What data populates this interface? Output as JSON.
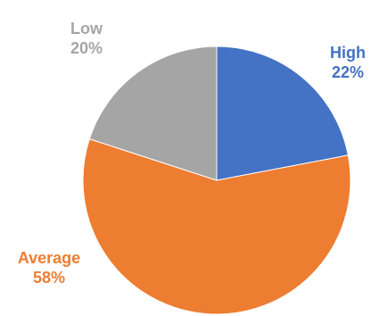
{
  "chart_data": {
    "type": "pie",
    "categories": [
      "High",
      "Average",
      "Low"
    ],
    "values": [
      22,
      58,
      20
    ],
    "value_labels": [
      "22%",
      "58%",
      "20%"
    ],
    "colors": [
      "#4472C4",
      "#ED7D31",
      "#A5A5A5"
    ],
    "label_colors": [
      "#4472C4",
      "#ED7D31",
      "#A5A5A5"
    ],
    "start": "12 o'clock",
    "direction": "clockwise",
    "legend": "none",
    "data_labels": "outside"
  }
}
